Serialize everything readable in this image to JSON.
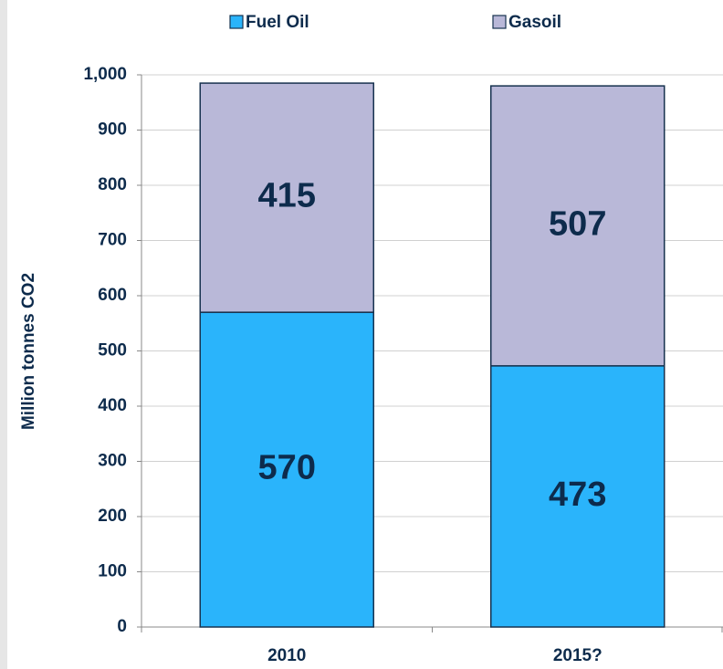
{
  "chart_data": {
    "type": "stacked_bar",
    "ylabel": "Million tonnes  CO2",
    "categories": [
      "2010",
      "2015?"
    ],
    "series": [
      {
        "name": "Fuel Oil",
        "color": "#2ab4fb",
        "values": [
          570,
          473
        ]
      },
      {
        "name": "Gasoil",
        "color": "#b9b8d8",
        "values": [
          415,
          507
        ]
      }
    ],
    "ylim": [
      0,
      1000
    ],
    "yticks": [
      0,
      100,
      200,
      300,
      400,
      500,
      600,
      700,
      800,
      900,
      {
        "value": 1000,
        "label": "1,000"
      }
    ],
    "grid": true,
    "legend": "top"
  }
}
